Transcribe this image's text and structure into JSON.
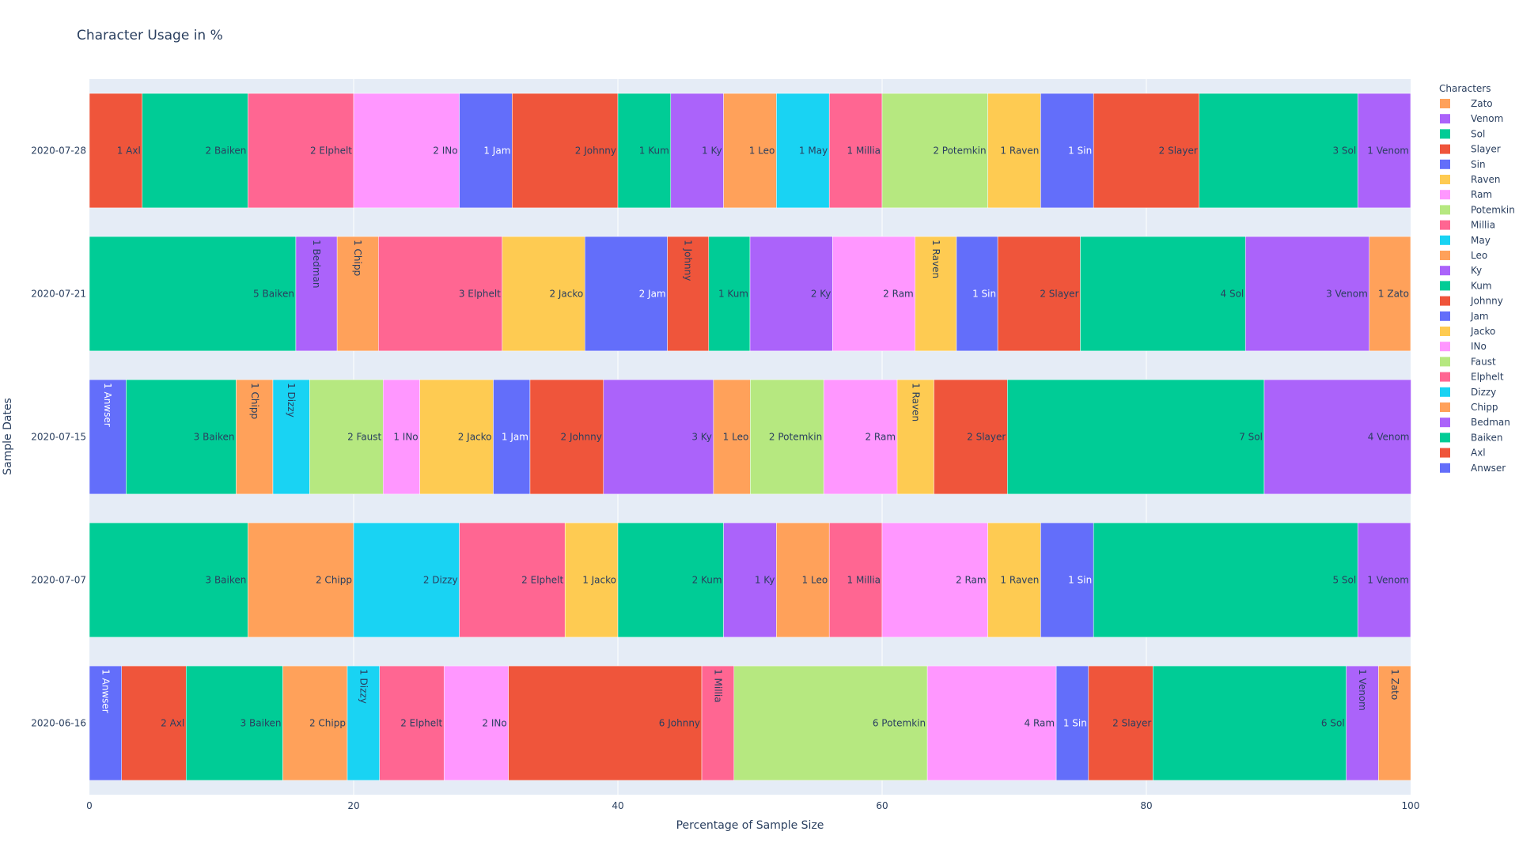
{
  "chart_data": {
    "type": "bar",
    "orientation": "horizontal",
    "barmode": "stack",
    "title": "Character Usage in %",
    "xlabel": "Percentage of Sample Size",
    "ylabel": "Sample Dates",
    "xlim": [
      0,
      100
    ],
    "xticks": [
      0,
      20,
      40,
      60,
      80,
      100
    ],
    "grid": true,
    "legend_title": "Characters",
    "legend_position": "right",
    "categories": [
      "2020-07-28",
      "2020-07-21",
      "2020-07-15",
      "2020-07-07",
      "2020-06-16"
    ],
    "legend": [
      {
        "name": "Zato",
        "color": "#FFA15A"
      },
      {
        "name": "Venom",
        "color": "#AB63FA"
      },
      {
        "name": "Sol",
        "color": "#00CC96"
      },
      {
        "name": "Slayer",
        "color": "#EF553B"
      },
      {
        "name": "Sin",
        "color": "#636EFA"
      },
      {
        "name": "Raven",
        "color": "#FECB52"
      },
      {
        "name": "Ram",
        "color": "#FF97FF"
      },
      {
        "name": "Potemkin",
        "color": "#B6E880"
      },
      {
        "name": "Millia",
        "color": "#FF6692"
      },
      {
        "name": "May",
        "color": "#19D3F3"
      },
      {
        "name": "Leo",
        "color": "#FFA15A"
      },
      {
        "name": "Ky",
        "color": "#AB63FA"
      },
      {
        "name": "Kum",
        "color": "#00CC96"
      },
      {
        "name": "Johnny",
        "color": "#EF553B"
      },
      {
        "name": "Jam",
        "color": "#636EFA"
      },
      {
        "name": "Jacko",
        "color": "#FECB52"
      },
      {
        "name": "INo",
        "color": "#FF97FF"
      },
      {
        "name": "Faust",
        "color": "#B6E880"
      },
      {
        "name": "Elphelt",
        "color": "#FF6692"
      },
      {
        "name": "Dizzy",
        "color": "#19D3F3"
      },
      {
        "name": "Chipp",
        "color": "#FFA15A"
      },
      {
        "name": "Bedman",
        "color": "#AB63FA"
      },
      {
        "name": "Baiken",
        "color": "#00CC96"
      },
      {
        "name": "Axl",
        "color": "#EF553B"
      },
      {
        "name": "Anwser",
        "color": "#636EFA"
      }
    ],
    "rows": [
      {
        "date": "2020-07-28",
        "segments": [
          {
            "name": "Axl",
            "percent": 4,
            "label": "1 Axl"
          },
          {
            "name": "Baiken",
            "percent": 8,
            "label": "2 Baiken"
          },
          {
            "name": "Elphelt",
            "percent": 8,
            "label": "2 Elphelt"
          },
          {
            "name": "INo",
            "percent": 8,
            "label": "2 INo"
          },
          {
            "name": "Jam",
            "percent": 4,
            "label": "1 Jam"
          },
          {
            "name": "Johnny",
            "percent": 8,
            "label": "2 Johnny"
          },
          {
            "name": "Kum",
            "percent": 4,
            "label": "1 Kum"
          },
          {
            "name": "Ky",
            "percent": 4,
            "label": "1 Ky"
          },
          {
            "name": "Leo",
            "percent": 4,
            "label": "1 Leo"
          },
          {
            "name": "May",
            "percent": 4,
            "label": "1 May"
          },
          {
            "name": "Millia",
            "percent": 4,
            "label": "1 Millia"
          },
          {
            "name": "Potemkin",
            "percent": 8,
            "label": "2 Potemkin"
          },
          {
            "name": "Raven",
            "percent": 4,
            "label": "1 Raven"
          },
          {
            "name": "Sin",
            "percent": 4,
            "label": "1 Sin"
          },
          {
            "name": "Slayer",
            "percent": 8,
            "label": "2 Slayer"
          },
          {
            "name": "Sol",
            "percent": 12,
            "label": "3 Sol"
          },
          {
            "name": "Venom",
            "percent": 4,
            "label": "1 Venom"
          }
        ]
      },
      {
        "date": "2020-07-21",
        "segments": [
          {
            "name": "Baiken",
            "percent": 15.625,
            "label": "5 Baiken"
          },
          {
            "name": "Bedman",
            "percent": 3.125,
            "label": "1 Bedman"
          },
          {
            "name": "Chipp",
            "percent": 3.125,
            "label": "1 Chipp"
          },
          {
            "name": "Elphelt",
            "percent": 9.375,
            "label": "3 Elphelt"
          },
          {
            "name": "Jacko",
            "percent": 6.25,
            "label": "2 Jacko"
          },
          {
            "name": "Jam",
            "percent": 6.25,
            "label": "2 Jam"
          },
          {
            "name": "Johnny",
            "percent": 3.125,
            "label": "1 Johnny"
          },
          {
            "name": "Kum",
            "percent": 3.125,
            "label": "1 Kum"
          },
          {
            "name": "Ky",
            "percent": 6.25,
            "label": "2 Ky"
          },
          {
            "name": "Ram",
            "percent": 6.25,
            "label": "2 Ram"
          },
          {
            "name": "Raven",
            "percent": 3.125,
            "label": "1 Raven"
          },
          {
            "name": "Sin",
            "percent": 3.125,
            "label": "1 Sin"
          },
          {
            "name": "Slayer",
            "percent": 6.25,
            "label": "2 Slayer"
          },
          {
            "name": "Sol",
            "percent": 12.5,
            "label": "4 Sol"
          },
          {
            "name": "Venom",
            "percent": 9.375,
            "label": "3 Venom"
          },
          {
            "name": "Zato",
            "percent": 3.125,
            "label": "1 Zato"
          }
        ]
      },
      {
        "date": "2020-07-15",
        "segments": [
          {
            "name": "Anwser",
            "percent": 2.78,
            "label": "1 Anwser"
          },
          {
            "name": "Baiken",
            "percent": 8.33,
            "label": "3 Baiken"
          },
          {
            "name": "Chipp",
            "percent": 2.78,
            "label": "1 Chipp"
          },
          {
            "name": "Dizzy",
            "percent": 2.78,
            "label": "1 Dizzy"
          },
          {
            "name": "Faust",
            "percent": 5.56,
            "label": "2 Faust"
          },
          {
            "name": "INo",
            "percent": 2.78,
            "label": "1 INo"
          },
          {
            "name": "Jacko",
            "percent": 5.56,
            "label": "2 Jacko"
          },
          {
            "name": "Jam",
            "percent": 2.78,
            "label": "1 Jam"
          },
          {
            "name": "Johnny",
            "percent": 5.56,
            "label": "2 Johnny"
          },
          {
            "name": "Ky",
            "percent": 8.33,
            "label": "3 Ky"
          },
          {
            "name": "Leo",
            "percent": 2.78,
            "label": "1 Leo"
          },
          {
            "name": "Potemkin",
            "percent": 5.56,
            "label": "2 Potemkin"
          },
          {
            "name": "Ram",
            "percent": 5.56,
            "label": "2 Ram"
          },
          {
            "name": "Raven",
            "percent": 2.78,
            "label": "1 Raven"
          },
          {
            "name": "Slayer",
            "percent": 5.56,
            "label": "2 Slayer"
          },
          {
            "name": "Sol",
            "percent": 19.44,
            "label": "7 Sol"
          },
          {
            "name": "Venom",
            "percent": 11.11,
            "label": "4 Venom"
          }
        ]
      },
      {
        "date": "2020-07-07",
        "segments": [
          {
            "name": "Baiken",
            "percent": 12,
            "label": "3 Baiken"
          },
          {
            "name": "Chipp",
            "percent": 8,
            "label": "2 Chipp"
          },
          {
            "name": "Dizzy",
            "percent": 8,
            "label": "2 Dizzy"
          },
          {
            "name": "Elphelt",
            "percent": 8,
            "label": "2 Elphelt"
          },
          {
            "name": "Jacko",
            "percent": 4,
            "label": "1 Jacko"
          },
          {
            "name": "Kum",
            "percent": 8,
            "label": "2 Kum"
          },
          {
            "name": "Ky",
            "percent": 4,
            "label": "1 Ky"
          },
          {
            "name": "Leo",
            "percent": 4,
            "label": "1 Leo"
          },
          {
            "name": "Millia",
            "percent": 4,
            "label": "1 Millia"
          },
          {
            "name": "Ram",
            "percent": 8,
            "label": "2 Ram"
          },
          {
            "name": "Raven",
            "percent": 4,
            "label": "1 Raven"
          },
          {
            "name": "Sin",
            "percent": 4,
            "label": "1 Sin"
          },
          {
            "name": "Sol",
            "percent": 20,
            "label": "5 Sol"
          },
          {
            "name": "Venom",
            "percent": 4,
            "label": "1 Venom"
          }
        ]
      },
      {
        "date": "2020-06-16",
        "segments": [
          {
            "name": "Anwser",
            "percent": 2.44,
            "label": "1 Anwser"
          },
          {
            "name": "Axl",
            "percent": 4.88,
            "label": "2 Axl"
          },
          {
            "name": "Baiken",
            "percent": 7.32,
            "label": "3 Baiken"
          },
          {
            "name": "Chipp",
            "percent": 4.88,
            "label": "2 Chipp"
          },
          {
            "name": "Dizzy",
            "percent": 2.44,
            "label": "1 Dizzy"
          },
          {
            "name": "Elphelt",
            "percent": 4.88,
            "label": "2 Elphelt"
          },
          {
            "name": "INo",
            "percent": 4.88,
            "label": "2 INo"
          },
          {
            "name": "Johnny",
            "percent": 14.63,
            "label": "6 Johnny"
          },
          {
            "name": "Millia",
            "percent": 2.44,
            "label": "1 Millia"
          },
          {
            "name": "Potemkin",
            "percent": 14.63,
            "label": "6 Potemkin"
          },
          {
            "name": "Ram",
            "percent": 9.76,
            "label": "4 Ram"
          },
          {
            "name": "Sin",
            "percent": 2.44,
            "label": "1 Sin"
          },
          {
            "name": "Slayer",
            "percent": 4.88,
            "label": "2 Slayer"
          },
          {
            "name": "Sol",
            "percent": 14.63,
            "label": "6 Sol"
          },
          {
            "name": "Venom",
            "percent": 2.44,
            "label": "1 Venom"
          },
          {
            "name": "Zato",
            "percent": 2.44,
            "label": "1 Zato"
          }
        ]
      }
    ]
  }
}
